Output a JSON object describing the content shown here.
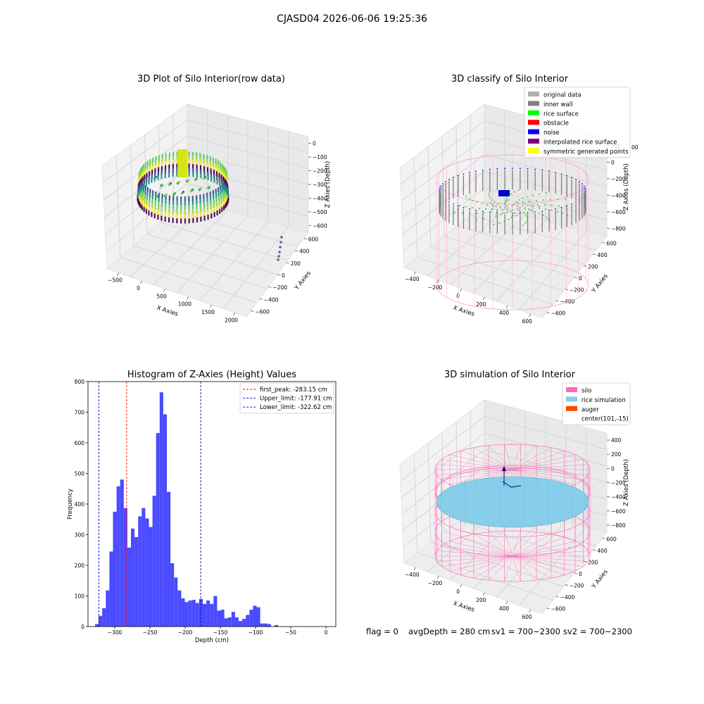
{
  "suptitle": "CJASD04 2026-06-06 19:25:36",
  "footer": {
    "flag": "flag = 0",
    "avg_depth": "avgDepth = 280 cm",
    "sv1": "sv1 = 700~2300",
    "sv2": "sv2 = 700~2300"
  },
  "colors": {
    "hist_bar": "#4b4bff",
    "first_peak": "#ff0000",
    "limits": "#0000cc",
    "silo": "#ff69b4",
    "rice_sim": "#87ceeb",
    "auger": "#ff4500",
    "navy": "#000080"
  },
  "chart_data": [
    {
      "type": "scatter",
      "subtype": "3d",
      "title": "3D Plot of Silo Interior(row data)",
      "xlabel": "X Axies",
      "ylabel": "Y Axies",
      "zlabel": "Z Axies (Depth)",
      "x_ticks": [
        "−500",
        "0",
        "500",
        "1000",
        "1500",
        "2000"
      ],
      "y_ticks": [
        "−600",
        "−400",
        "−200",
        "0",
        "200",
        "400",
        "600"
      ],
      "z_ticks": [
        "0",
        "−100",
        "−200",
        "−300",
        "−400",
        "−500",
        "−600"
      ],
      "colormap": "viridis",
      "grid": true
    },
    {
      "type": "scatter",
      "subtype": "3d",
      "title": "3D classify of Silo Interior",
      "xlabel": "X Axies",
      "ylabel": "Y Axies",
      "zlabel": "Z Axies (Depth)",
      "x_ticks": [
        "−400",
        "−200",
        "0",
        "200",
        "400",
        "600"
      ],
      "y_ticks": [
        "−600",
        "−400",
        "−200",
        "0",
        "200",
        "400",
        "600"
      ],
      "z_ticks": [
        "200",
        "0",
        "−200",
        "−400",
        "−600",
        "−800"
      ],
      "z_tick_partial": "00",
      "legend": [
        {
          "label": "original data",
          "color": "#b0b0b0"
        },
        {
          "label": "inner wall",
          "color": "#808080"
        },
        {
          "label": "rice surface",
          "color": "#00ff00"
        },
        {
          "label": "obstacle",
          "color": "#ff0000"
        },
        {
          "label": "noise",
          "color": "#0000ff"
        },
        {
          "label": "interpolated rice surface",
          "color": "#800080"
        },
        {
          "label": "symmetric generated points",
          "color": "#ffff00"
        }
      ],
      "legend_loc": "upper right",
      "grid": true
    },
    {
      "type": "bar",
      "subtype": "histogram",
      "title": "Histogram of Z-Axies (Height) Values",
      "xlabel": "Depth (cm)",
      "ylabel": "Frequency",
      "xlim": [
        -338,
        14
      ],
      "ylim": [
        0,
        800
      ],
      "x_ticks": [
        -300,
        -250,
        -200,
        -150,
        -100,
        -50,
        0
      ],
      "x_tick_labels": [
        "−300",
        "−250",
        "−200",
        "−150",
        "−100",
        "−50",
        "0"
      ],
      "y_ticks": [
        0,
        100,
        200,
        300,
        400,
        500,
        600,
        700,
        800
      ],
      "y_tick_labels": [
        "0",
        "100",
        "200",
        "300",
        "400",
        "500",
        "600",
        "700",
        "800"
      ],
      "bin_start": -328,
      "bin_width": 5.1,
      "values": [
        8,
        35,
        60,
        118,
        245,
        375,
        458,
        480,
        387,
        258,
        320,
        292,
        360,
        387,
        353,
        325,
        427,
        632,
        765,
        693,
        440,
        207,
        160,
        118,
        92,
        80,
        85,
        87,
        77,
        90,
        74,
        85,
        74,
        100,
        52,
        55,
        27,
        30,
        48,
        30,
        18,
        25,
        38,
        55,
        68,
        63,
        10,
        10,
        8,
        0,
        5
      ],
      "vlines": [
        {
          "x": -283.15,
          "label": "first_peak: -283.15 cm",
          "color": "#ff0000"
        },
        {
          "x": -177.91,
          "label": "Upper_limit: -177.91 cm",
          "color": "#0000cc"
        },
        {
          "x": -322.62,
          "label": "Lower_limit: -322.62 cm",
          "color": "#0000cc"
        }
      ],
      "legend_loc": "upper right"
    },
    {
      "type": "scatter",
      "subtype": "3d",
      "title": "3D simulation of Silo Interior",
      "xlabel": "X Axies",
      "ylabel": "Y Axies",
      "zlabel": "Z Axies (Depth)",
      "x_ticks": [
        "−400",
        "−200",
        "0",
        "200",
        "400",
        "600"
      ],
      "y_ticks": [
        "−600",
        "−400",
        "−200",
        "0",
        "200",
        "400",
        "600"
      ],
      "z_ticks": [
        "400",
        "200",
        "0",
        "−200",
        "−400",
        "−600",
        "−800"
      ],
      "legend": [
        {
          "label": "silo",
          "color": "#ff69b4"
        },
        {
          "label": "rice simulation",
          "color": "#87ceeb"
        },
        {
          "label": "auger",
          "color": "#ff4500"
        },
        {
          "label": "center(101,-15)",
          "color": ""
        }
      ],
      "legend_loc": "upper right",
      "grid": true
    }
  ]
}
